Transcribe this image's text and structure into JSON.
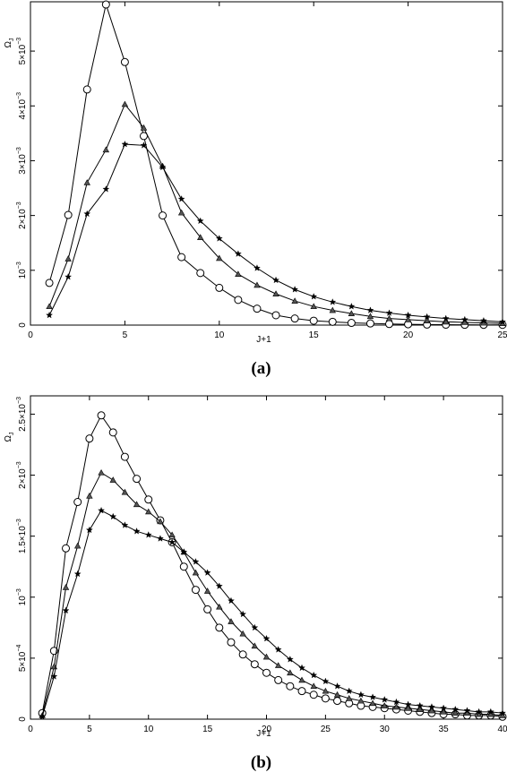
{
  "chart_data": [
    {
      "type": "line",
      "panel_label": "(a)",
      "xlabel": "J+1",
      "ylabel": "Ω",
      "ylabel_sub": "J",
      "xlim": [
        0,
        25
      ],
      "ylim": [
        0,
        0.0059
      ],
      "xticks": [
        0,
        5,
        10,
        15,
        20,
        25
      ],
      "yticks": [
        {
          "value": 0,
          "mant": "0",
          "exp": ""
        },
        {
          "value": 0.001,
          "mant": "10",
          "exp": "−3"
        },
        {
          "value": 0.002,
          "mant": "2×10",
          "exp": "−3"
        },
        {
          "value": 0.003,
          "mant": "3×10",
          "exp": "−3"
        },
        {
          "value": 0.004,
          "mant": "4×10",
          "exp": "−3"
        },
        {
          "value": 0.005,
          "mant": "5×10",
          "exp": "−3"
        }
      ],
      "grid": false,
      "series": [
        {
          "marker": "circle",
          "x": [
            1,
            2,
            3,
            4,
            5,
            6,
            7,
            8,
            9,
            10,
            11,
            12,
            13,
            14,
            15,
            16,
            17,
            18,
            19,
            20,
            21,
            22,
            23,
            24,
            25
          ],
          "y": [
            0.00077,
            0.00201,
            0.0043,
            0.00585,
            0.0048,
            0.00345,
            0.002,
            0.00124,
            0.00095,
            0.00068,
            0.00046,
            0.0003,
            0.00018,
            0.00012,
            8e-05,
            6e-05,
            4e-05,
            3e-05,
            2e-05,
            1.5e-05,
            1e-05,
            8e-06,
            6e-06,
            5e-06,
            4e-06
          ]
        },
        {
          "marker": "triangle",
          "x": [
            1,
            2,
            3,
            4,
            5,
            6,
            7,
            8,
            9,
            10,
            11,
            12,
            13,
            14,
            15,
            16,
            17,
            18,
            19,
            20,
            21,
            22,
            23,
            24,
            25
          ],
          "y": [
            0.00034,
            0.00121,
            0.0026,
            0.0032,
            0.00403,
            0.0036,
            0.0029,
            0.00205,
            0.0016,
            0.00122,
            0.00093,
            0.00073,
            0.00057,
            0.00044,
            0.00034,
            0.00027,
            0.00021,
            0.00016,
            0.00012,
            0.0001,
            8e-05,
            6e-05,
            5e-05,
            4e-05,
            3e-05
          ]
        },
        {
          "marker": "star",
          "x": [
            1,
            2,
            3,
            4,
            5,
            6,
            7,
            8,
            9,
            10,
            11,
            12,
            13,
            14,
            15,
            16,
            17,
            18,
            19,
            20,
            21,
            22,
            23,
            24,
            25
          ],
          "y": [
            0.00018,
            0.00088,
            0.00203,
            0.00248,
            0.0033,
            0.00328,
            0.00288,
            0.0023,
            0.0019,
            0.00158,
            0.0013,
            0.00104,
            0.00082,
            0.00065,
            0.00052,
            0.00042,
            0.00034,
            0.00027,
            0.00022,
            0.00018,
            0.00015,
            0.00012,
            0.0001,
            8e-05,
            6e-05
          ]
        }
      ]
    },
    {
      "type": "line",
      "panel_label": "(b)",
      "xlabel": "J+1",
      "ylabel": "Ω",
      "ylabel_sub": "J",
      "xlim": [
        0,
        40
      ],
      "ylim": [
        0,
        0.00265
      ],
      "xticks": [
        0,
        5,
        10,
        15,
        20,
        25,
        30,
        35,
        40
      ],
      "yticks": [
        {
          "value": 0,
          "mant": "0",
          "exp": ""
        },
        {
          "value": 0.0005,
          "mant": "5×10",
          "exp": "−4"
        },
        {
          "value": 0.001,
          "mant": "10",
          "exp": "−3"
        },
        {
          "value": 0.0015,
          "mant": "1.5×10",
          "exp": "−3"
        },
        {
          "value": 0.002,
          "mant": "2×10",
          "exp": "−3"
        },
        {
          "value": 0.0025,
          "mant": "2.5×10",
          "exp": "−3"
        }
      ],
      "grid": false,
      "series": [
        {
          "marker": "circle",
          "x": [
            1,
            2,
            3,
            4,
            5,
            6,
            7,
            8,
            9,
            10,
            11,
            12,
            13,
            14,
            15,
            16,
            17,
            18,
            19,
            20,
            21,
            22,
            23,
            24,
            25,
            26,
            27,
            28,
            29,
            30,
            31,
            32,
            33,
            34,
            35,
            36,
            37,
            38,
            39,
            40
          ],
          "y": [
            5e-05,
            0.00056,
            0.0014,
            0.00178,
            0.0023,
            0.00249,
            0.00235,
            0.00215,
            0.00197,
            0.0018,
            0.00163,
            0.00145,
            0.00125,
            0.00106,
            0.0009,
            0.00075,
            0.00063,
            0.00053,
            0.00045,
            0.00038,
            0.00032,
            0.00027,
            0.00023,
            0.0002,
            0.00017,
            0.00015,
            0.00013,
            0.00011,
            0.0001,
            9e-05,
            8e-05,
            7e-05,
            6e-05,
            5e-05,
            4e-05,
            4e-05,
            3e-05,
            3e-05,
            3e-05,
            2e-05
          ]
        },
        {
          "marker": "triangle",
          "x": [
            1,
            2,
            3,
            4,
            5,
            6,
            7,
            8,
            9,
            10,
            11,
            12,
            13,
            14,
            15,
            16,
            17,
            18,
            19,
            20,
            21,
            22,
            23,
            24,
            25,
            26,
            27,
            28,
            29,
            30,
            31,
            32,
            33,
            34,
            35,
            36,
            37,
            38,
            39,
            40
          ],
          "y": [
            3e-05,
            0.00043,
            0.00108,
            0.00142,
            0.00183,
            0.00202,
            0.00196,
            0.00186,
            0.00176,
            0.0017,
            0.00162,
            0.00151,
            0.00137,
            0.0012,
            0.00105,
            0.00092,
            0.0008,
            0.0007,
            0.0006,
            0.00051,
            0.00044,
            0.00038,
            0.00032,
            0.00027,
            0.00023,
            0.0002,
            0.00017,
            0.00015,
            0.00013,
            0.00011,
            0.0001,
            9e-05,
            8e-05,
            7e-05,
            6e-05,
            5e-05,
            5e-05,
            4e-05,
            4e-05,
            3e-05
          ]
        },
        {
          "marker": "star",
          "x": [
            1,
            2,
            3,
            4,
            5,
            6,
            7,
            8,
            9,
            10,
            11,
            12,
            13,
            14,
            15,
            16,
            17,
            18,
            19,
            20,
            21,
            22,
            23,
            24,
            25,
            26,
            27,
            28,
            29,
            30,
            31,
            32,
            33,
            34,
            35,
            36,
            37,
            38,
            39,
            40
          ],
          "y": [
            2e-05,
            0.00035,
            0.00089,
            0.00119,
            0.00155,
            0.00171,
            0.00166,
            0.00159,
            0.00154,
            0.00151,
            0.00148,
            0.00145,
            0.00137,
            0.00129,
            0.0012,
            0.00109,
            0.00097,
            0.00086,
            0.00075,
            0.00066,
            0.00057,
            0.00049,
            0.00042,
            0.00036,
            0.00031,
            0.00027,
            0.00023,
            0.0002,
            0.00018,
            0.00016,
            0.00014,
            0.00012,
            0.00011,
            0.0001,
            9e-05,
            8e-05,
            7e-05,
            6e-05,
            6e-05,
            5e-05
          ]
        }
      ]
    }
  ]
}
